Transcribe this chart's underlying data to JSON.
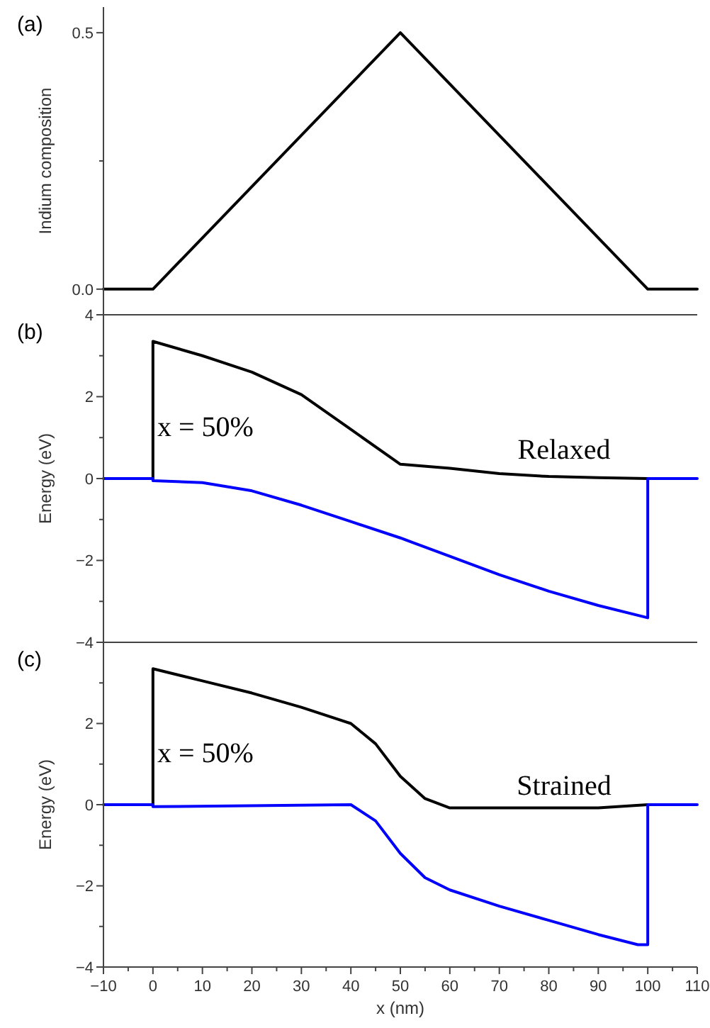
{
  "chart_data": [
    {
      "type": "line",
      "title": "(a)",
      "ylabel": "Indium composition",
      "xlim": [
        -10,
        110
      ],
      "ylim": [
        -0.05,
        0.55
      ],
      "yticks": [
        {
          "value": 0,
          "label": "0.0"
        },
        {
          "value": 0.25,
          "label": null
        },
        {
          "value": 0.5,
          "label": "0.5"
        }
      ],
      "tick_labels": "y",
      "series": [
        {
          "color": "#000000",
          "x": [
            -10,
            0,
            50,
            100,
            110
          ],
          "values": [
            0,
            0,
            0.5,
            0,
            0
          ]
        }
      ]
    },
    {
      "type": "line",
      "title": "(b)",
      "ylabel": "Energy (eV)",
      "xlim": [
        -10,
        110
      ],
      "ylim": [
        -4,
        4
      ],
      "yticks": [
        -4,
        {
          "value": -3,
          "label": null
        },
        -2,
        {
          "value": -1,
          "label": null
        },
        0,
        {
          "value": 1,
          "label": null
        },
        2,
        {
          "value": 3,
          "label": null
        },
        4
      ],
      "tick_labels": "y",
      "annotations": [
        "x = 50%",
        "Relaxed"
      ],
      "series": [
        {
          "color": "#000000",
          "x": [
            0,
            0,
            10,
            20,
            30,
            40,
            50,
            60,
            70,
            80,
            90,
            100
          ],
          "values": [
            0,
            3.35,
            3.0,
            2.6,
            2.05,
            1.2,
            0.35,
            0.25,
            0.12,
            0.05,
            0.02,
            0
          ]
        },
        {
          "color": "#0000ff",
          "x": [
            -10,
            0,
            0,
            10,
            20,
            30,
            40,
            50,
            60,
            70,
            80,
            90,
            100,
            100,
            110
          ],
          "values": [
            0,
            0,
            -0.05,
            -0.1,
            -0.3,
            -0.65,
            -1.05,
            -1.45,
            -1.9,
            -2.35,
            -2.75,
            -3.1,
            -3.4,
            0,
            0
          ]
        }
      ]
    },
    {
      "type": "line",
      "title": "(c)",
      "xlabel": "x (nm)",
      "ylabel": "Energy (eV)",
      "xlim": [
        -10,
        110
      ],
      "xticks": [
        -10,
        {
          "value": -5,
          "label": null
        },
        0,
        {
          "value": 5,
          "label": null
        },
        10,
        {
          "value": 15,
          "label": null
        },
        20,
        {
          "value": 25,
          "label": null
        },
        30,
        {
          "value": 35,
          "label": null
        },
        40,
        {
          "value": 45,
          "label": null
        },
        50,
        {
          "value": 55,
          "label": null
        },
        60,
        {
          "value": 65,
          "label": null
        },
        70,
        {
          "value": 75,
          "label": null
        },
        80,
        {
          "value": 85,
          "label": null
        },
        90,
        {
          "value": 95,
          "label": null
        },
        100,
        {
          "value": 105,
          "label": null
        },
        110
      ],
      "ylim": [
        -4,
        4
      ],
      "yticks": [
        -4,
        {
          "value": -3,
          "label": null
        },
        -2,
        {
          "value": -1,
          "label": null
        },
        0,
        {
          "value": 1,
          "label": null
        },
        2,
        {
          "value": 3,
          "label": null
        },
        {
          "value": 4,
          "label": null
        }
      ],
      "annotations": [
        "x = 50%",
        "Strained"
      ],
      "series": [
        {
          "color": "#000000",
          "x": [
            0,
            0,
            10,
            20,
            30,
            40,
            45,
            50,
            55,
            60,
            70,
            80,
            90,
            100
          ],
          "values": [
            0,
            3.35,
            3.05,
            2.75,
            2.4,
            2.0,
            1.5,
            0.7,
            0.15,
            -0.08,
            -0.08,
            -0.08,
            -0.08,
            0
          ]
        },
        {
          "color": "#0000ff",
          "x": [
            -10,
            0,
            0,
            40,
            45,
            50,
            55,
            60,
            70,
            80,
            90,
            98,
            100,
            100,
            110
          ],
          "values": [
            0,
            0,
            -0.05,
            0,
            -0.4,
            -1.2,
            -1.8,
            -2.1,
            -2.5,
            -2.85,
            -3.2,
            -3.45,
            -3.45,
            0,
            0
          ]
        }
      ]
    }
  ]
}
